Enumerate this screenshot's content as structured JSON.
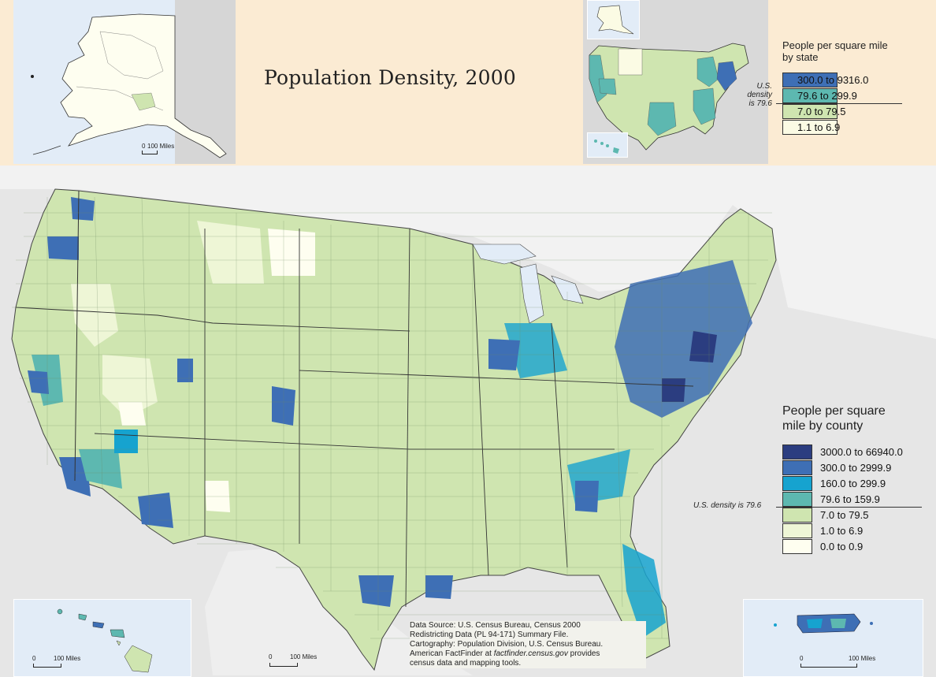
{
  "title": "Population Density, 2000",
  "state_legend": {
    "title_line1": "People per square mile",
    "title_line2": "by state",
    "density_note_line1": "U.S.",
    "density_note_line2": "density",
    "density_note_line3": "is 79.6",
    "classes": [
      {
        "label": "300.0 to 9316.0",
        "color": "#3e6fb5"
      },
      {
        "label": "79.6 to 299.9",
        "color": "#5db8b0"
      },
      {
        "label": "7.0 to 79.5",
        "color": "#cfe5b0"
      },
      {
        "label": "1.1 to 6.9",
        "color": "#fbfbe4"
      }
    ]
  },
  "county_legend": {
    "title_line1": "People per square",
    "title_line2": "mile by county",
    "density_note": "U.S. density is 79.6",
    "classes": [
      {
        "label": "3000.0 to 66940.0",
        "color": "#2b3d80"
      },
      {
        "label": "300.0 to 2999.9",
        "color": "#3e6fb5"
      },
      {
        "label": "160.0 to 299.9",
        "color": "#16a3cf"
      },
      {
        "label": "79.6 to 159.9",
        "color": "#5db8b0"
      },
      {
        "label": "7.0 to 79.5",
        "color": "#cfe5b0"
      },
      {
        "label": "1.0 to 6.9",
        "color": "#eef6d6"
      },
      {
        "label": "0.0 to 0.9",
        "color": "#fefef0"
      }
    ]
  },
  "scales": {
    "alaska": "100 Miles",
    "alaska_zero": "0",
    "hawaii": "100 Miles",
    "hawaii_zero": "0",
    "main": "100 Miles",
    "main_zero": "0",
    "puerto_rico": "100 Miles",
    "puerto_rico_zero": "0"
  },
  "source": {
    "line1": "Data Source: U.S. Census Bureau, Census 2000",
    "line2": "Redistricting Data (PL 94-171) Summary File.",
    "line3": "Cartography: Population Division, U.S. Census Bureau.",
    "line4_prefix": "American FactFinder at ",
    "line4_link": "factfinder.census.gov",
    "line4_suffix": " provides",
    "line5": "census data and mapping tools."
  }
}
